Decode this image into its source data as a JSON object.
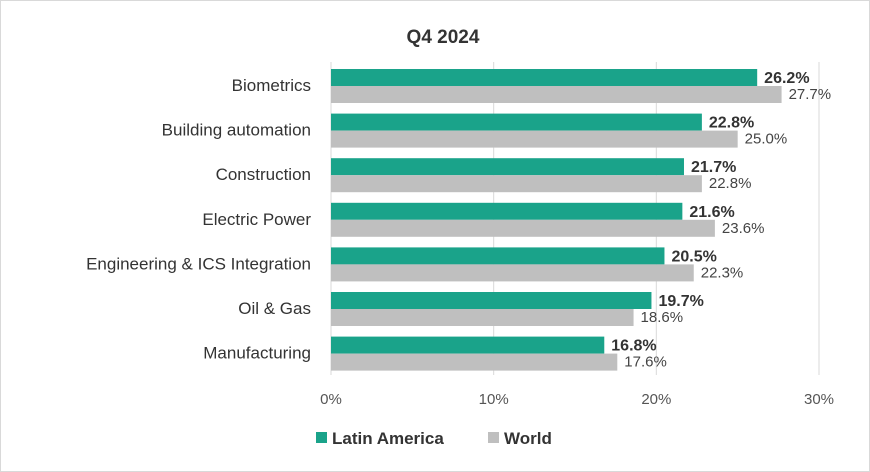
{
  "chart_data": {
    "type": "bar",
    "orientation": "horizontal",
    "title": "Q4 2024",
    "categories": [
      "Biometrics",
      "Building automation",
      "Construction",
      "Electric Power",
      "Engineering & ICS Integration",
      "Oil & Gas",
      "Manufacturing"
    ],
    "series": [
      {
        "name": "Latin America",
        "color": "#1aa38a",
        "values": [
          26.2,
          22.8,
          21.7,
          21.6,
          20.5,
          19.7,
          16.8
        ],
        "labels": [
          "26.2%",
          "22.8%",
          "21.7%",
          "21.6%",
          "20.5%",
          "19.7%",
          "16.8%"
        ]
      },
      {
        "name": "World",
        "color": "#bfbfbf",
        "values": [
          27.7,
          25.0,
          22.8,
          23.6,
          22.3,
          18.6,
          17.6
        ],
        "labels": [
          "27.7%",
          "25.0%",
          "22.8%",
          "23.6%",
          "22.3%",
          "18.6%",
          "17.6%"
        ]
      }
    ],
    "xlim": [
      0,
      30
    ],
    "xticks": [
      0,
      10,
      20,
      30
    ],
    "xtick_labels": [
      "0%",
      "10%",
      "20%",
      "30%"
    ],
    "grid": "vertical",
    "legend": "bottom-center"
  }
}
